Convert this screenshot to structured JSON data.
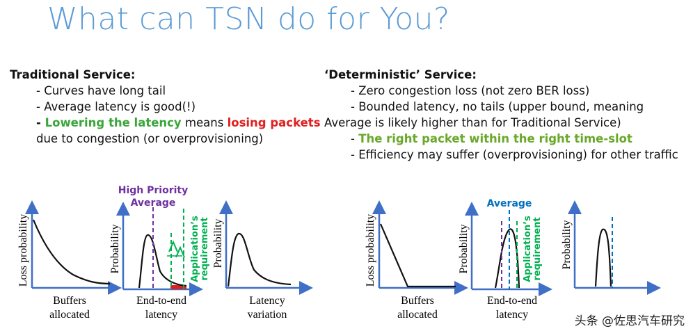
{
  "title": "What can TSN do for You?",
  "traditional": {
    "heading": "Traditional Service:",
    "line1": "- Curves have long tail",
    "line2": "- Average latency is good(!)",
    "line3_dash": "- ",
    "line3_green": "Lowering the latency",
    "line3_mid": " means ",
    "line3_red": "losing packets",
    "line4": "due to congestion (or overprovisioning)"
  },
  "deterministic": {
    "heading": "‘Deterministic’ Service:",
    "line1": "- Zero congestion loss (not zero BER loss)",
    "line2": "- Bounded latency, no tails (upper bound, meaning",
    "line3": "Average is likely higher than for Traditional Service)",
    "line4_dash": "- ",
    "line4_green": "The right packet within the right time-slot",
    "line5": "- Efficiency may suffer (overprovisioning) for other traffic"
  },
  "left_graphs": {
    "loss_ylabel": "Loss probability",
    "loss_xlabel_1": "Buffers",
    "loss_xlabel_2": "allocated",
    "lat_ylabel": "Probability",
    "lat_xlabel_1": "End-to-end",
    "lat_xlabel_2": "latency",
    "hp_label_1": "High Priority",
    "hp_label_2": "Average",
    "app_label_1": "Application’s",
    "app_label_2": "requirement",
    "var_ylabel": "Probability",
    "var_xlabel_1": "Latency",
    "var_xlabel_2": "variation"
  },
  "right_graphs": {
    "loss_ylabel": "Loss probability",
    "loss_xlabel_1": "Buffers",
    "loss_xlabel_2": "allocated",
    "lat_ylabel": "Probability",
    "lat_xlabel_1": "End-to-end",
    "lat_xlabel_2": "latency",
    "avg_label": "Average",
    "app_label_1": "Application’s",
    "app_label_2": "requirement",
    "var_ylabel": "Probability"
  },
  "watermark": "头条 @佐思汽车研究",
  "colors": {
    "title": "#5b9bd5",
    "purple": "#7030a0",
    "green": "#00b050",
    "blue": "#0070c0",
    "red": "#e02020"
  }
}
